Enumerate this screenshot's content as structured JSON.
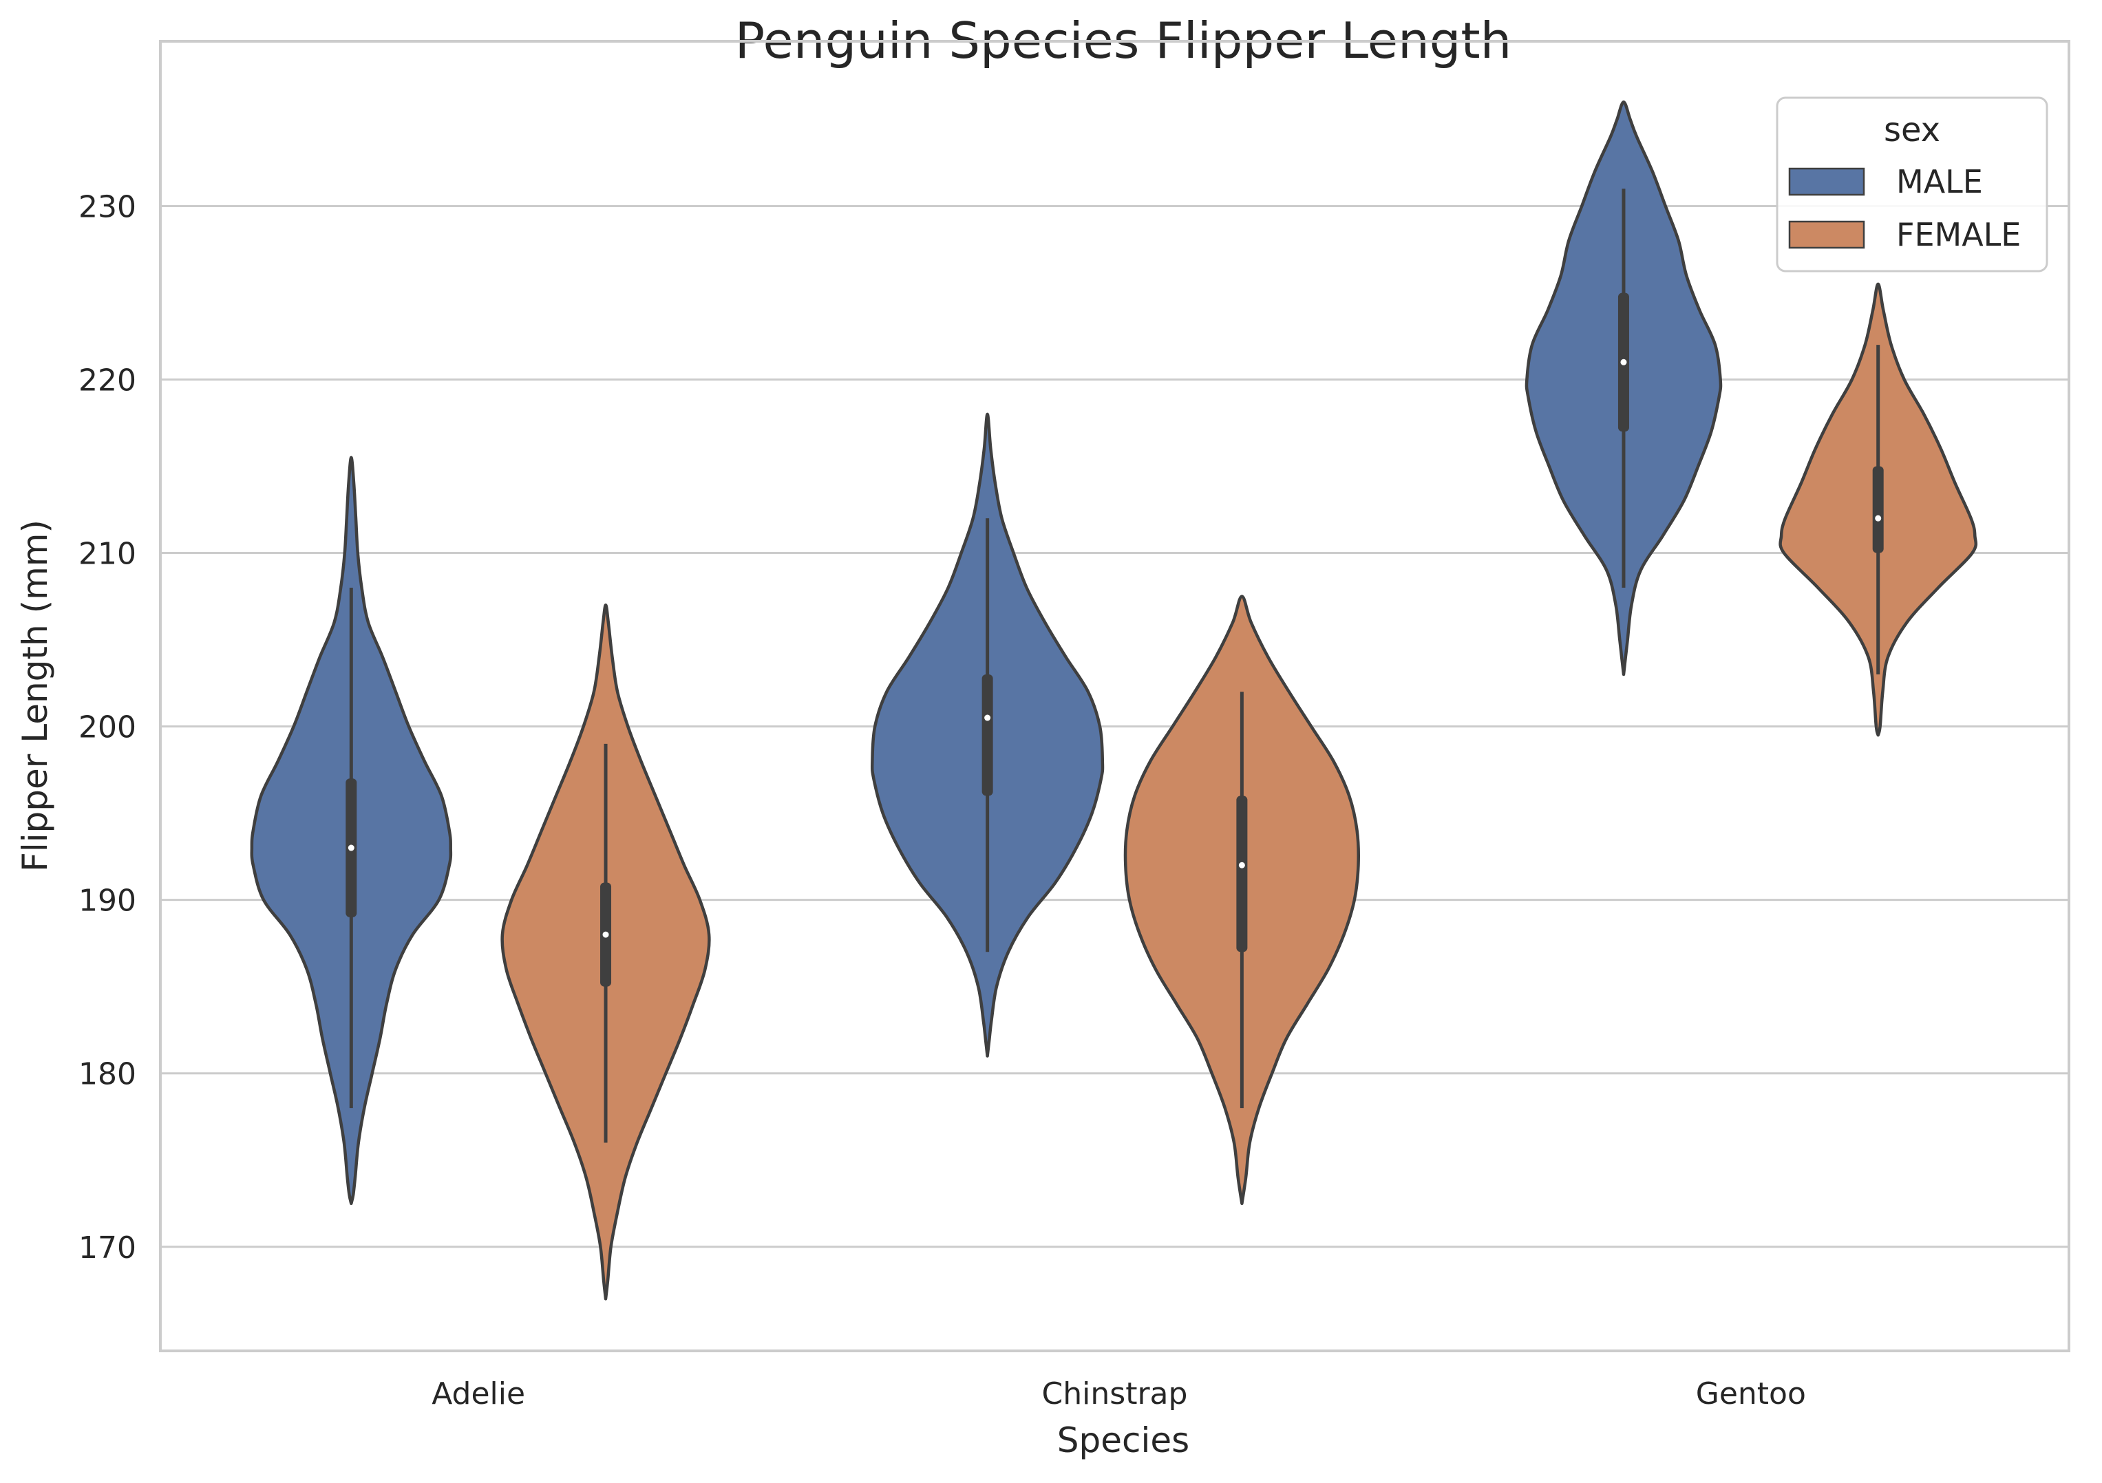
{
  "chart_data": {
    "type": "violin",
    "title": "Penguin Species Flipper Length",
    "xlabel": "Species",
    "ylabel": "Flipper Length (mm)",
    "categories": [
      "Adelie",
      "Chinstrap",
      "Gentoo"
    ],
    "ylim": [
      164,
      239.5
    ],
    "yticks": [
      170,
      180,
      190,
      200,
      210,
      220,
      230
    ],
    "grid": true,
    "legend": {
      "title": "sex",
      "placement": "top-right",
      "entries": [
        "MALE",
        "FEMALE"
      ]
    },
    "colors": {
      "MALE": "#5875a4",
      "FEMALE": "#cc8963",
      "outline": "#3f3f3f",
      "grid": "#cccccc",
      "spine": "#cccccc"
    },
    "series": [
      {
        "name": "MALE",
        "violins": [
          {
            "category": "Adelie",
            "min": 178,
            "q1": 189,
            "median": 193,
            "q3": 197,
            "max": 208,
            "kde_min": 172.5,
            "kde_max": 215.5,
            "profile": [
              [
                172.5,
                0.0
              ],
              [
                173,
                0.015
              ],
              [
                174,
                0.03
              ],
              [
                176,
                0.055
              ],
              [
                178,
                0.1
              ],
              [
                180,
                0.16
              ],
              [
                182,
                0.22
              ],
              [
                184,
                0.27
              ],
              [
                186,
                0.34
              ],
              [
                188,
                0.47
              ],
              [
                190,
                0.67
              ],
              [
                192,
                0.75
              ],
              [
                193,
                0.76
              ],
              [
                194,
                0.75
              ],
              [
                196,
                0.69
              ],
              [
                198,
                0.56
              ],
              [
                200,
                0.44
              ],
              [
                202,
                0.34
              ],
              [
                204,
                0.24
              ],
              [
                206,
                0.13
              ],
              [
                208,
                0.08
              ],
              [
                210,
                0.05
              ],
              [
                212,
                0.035
              ],
              [
                214,
                0.02
              ],
              [
                215.5,
                0.0
              ]
            ]
          },
          {
            "category": "Chinstrap",
            "min": 187,
            "q1": 196,
            "median": 200.5,
            "q3": 203,
            "max": 212,
            "kde_min": 181,
            "kde_max": 218,
            "profile": [
              [
                181,
                0.0
              ],
              [
                182,
                0.015
              ],
              [
                183,
                0.03
              ],
              [
                185,
                0.07
              ],
              [
                187,
                0.16
              ],
              [
                189,
                0.31
              ],
              [
                191,
                0.52
              ],
              [
                193,
                0.68
              ],
              [
                195,
                0.8
              ],
              [
                197,
                0.87
              ],
              [
                198,
                0.88
              ],
              [
                200,
                0.86
              ],
              [
                202,
                0.77
              ],
              [
                204,
                0.6
              ],
              [
                206,
                0.44
              ],
              [
                208,
                0.3
              ],
              [
                210,
                0.2
              ],
              [
                212,
                0.11
              ],
              [
                214,
                0.06
              ],
              [
                216,
                0.025
              ],
              [
                218,
                0.0
              ]
            ]
          },
          {
            "category": "Gentoo",
            "min": 208,
            "q1": 217,
            "median": 221,
            "q3": 225,
            "max": 231,
            "kde_min": 203,
            "kde_max": 236,
            "profile": [
              [
                203,
                0.0
              ],
              [
                204,
                0.015
              ],
              [
                205,
                0.03
              ],
              [
                207,
                0.06
              ],
              [
                209,
                0.13
              ],
              [
                211,
                0.3
              ],
              [
                213,
                0.46
              ],
              [
                215,
                0.57
              ],
              [
                217,
                0.67
              ],
              [
                219,
                0.73
              ],
              [
                220,
                0.74
              ],
              [
                222,
                0.7
              ],
              [
                224,
                0.58
              ],
              [
                226,
                0.48
              ],
              [
                228,
                0.42
              ],
              [
                230,
                0.32
              ],
              [
                232,
                0.22
              ],
              [
                234,
                0.1
              ],
              [
                235,
                0.05
              ],
              [
                236,
                0.0
              ]
            ]
          }
        ]
      },
      {
        "name": "FEMALE",
        "violins": [
          {
            "category": "Adelie",
            "min": 176,
            "q1": 185,
            "median": 188,
            "q3": 191,
            "max": 199,
            "kde_min": 167,
            "kde_max": 207,
            "profile": [
              [
                167,
                0.0
              ],
              [
                168,
                0.015
              ],
              [
                170,
                0.04
              ],
              [
                172,
                0.09
              ],
              [
                174,
                0.15
              ],
              [
                176,
                0.24
              ],
              [
                178,
                0.35
              ],
              [
                180,
                0.46
              ],
              [
                182,
                0.57
              ],
              [
                184,
                0.67
              ],
              [
                186,
                0.76
              ],
              [
                188,
                0.79
              ],
              [
                190,
                0.72
              ],
              [
                192,
                0.6
              ],
              [
                194,
                0.49
              ],
              [
                196,
                0.38
              ],
              [
                198,
                0.27
              ],
              [
                200,
                0.17
              ],
              [
                202,
                0.09
              ],
              [
                204,
                0.05
              ],
              [
                206,
                0.02
              ],
              [
                207,
                0.0
              ]
            ]
          },
          {
            "category": "Chinstrap",
            "min": 178,
            "q1": 187,
            "median": 192,
            "q3": 196,
            "max": 202,
            "kde_min": 172.5,
            "kde_max": 207.5,
            "profile": [
              [
                172.5,
                0.0
              ],
              [
                174,
                0.03
              ],
              [
                176,
                0.06
              ],
              [
                178,
                0.13
              ],
              [
                180,
                0.23
              ],
              [
                182,
                0.34
              ],
              [
                184,
                0.5
              ],
              [
                186,
                0.66
              ],
              [
                188,
                0.78
              ],
              [
                190,
                0.86
              ],
              [
                192,
                0.89
              ],
              [
                194,
                0.88
              ],
              [
                196,
                0.82
              ],
              [
                198,
                0.7
              ],
              [
                200,
                0.53
              ],
              [
                202,
                0.36
              ],
              [
                204,
                0.2
              ],
              [
                206,
                0.07
              ],
              [
                207.5,
                0.0
              ]
            ]
          },
          {
            "category": "Gentoo",
            "min": 203,
            "q1": 210,
            "median": 212,
            "q3": 215,
            "max": 222,
            "kde_min": 199.5,
            "kde_max": 225.5,
            "profile": [
              [
                199.5,
                0.0
              ],
              [
                200,
                0.015
              ],
              [
                202,
                0.035
              ],
              [
                204,
                0.075
              ],
              [
                206,
                0.22
              ],
              [
                208,
                0.46
              ],
              [
                210,
                0.72
              ],
              [
                211,
                0.74
              ],
              [
                212,
                0.71
              ],
              [
                214,
                0.59
              ],
              [
                216,
                0.48
              ],
              [
                218,
                0.35
              ],
              [
                220,
                0.2
              ],
              [
                222,
                0.1
              ],
              [
                224,
                0.04
              ],
              [
                225.5,
                0.0
              ]
            ]
          }
        ]
      }
    ]
  }
}
